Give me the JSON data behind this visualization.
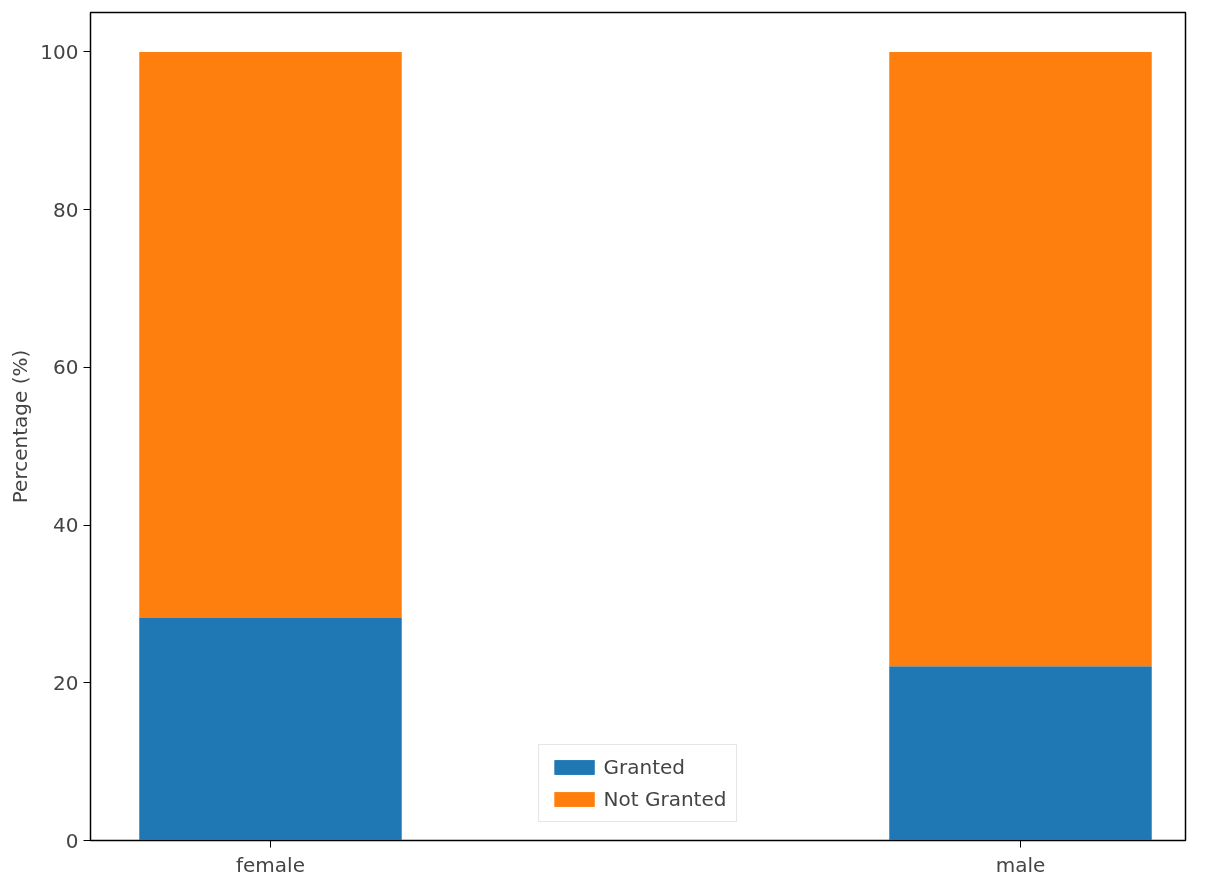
{
  "chart_data": {
    "type": "bar",
    "stacked": true,
    "ylabel": "Percentage (%)",
    "categories": [
      "female",
      "male"
    ],
    "series": [
      {
        "name": "Granted",
        "color": "#1f77b4",
        "values": [
          28.2,
          22.1
        ]
      },
      {
        "name": "Not Granted",
        "color": "#ff7f0e",
        "values": [
          71.8,
          77.9
        ]
      }
    ],
    "ylim": [
      0,
      105
    ],
    "yticks": [
      0,
      20,
      40,
      60,
      80,
      100
    ],
    "grid": false,
    "legend": "bottom"
  }
}
